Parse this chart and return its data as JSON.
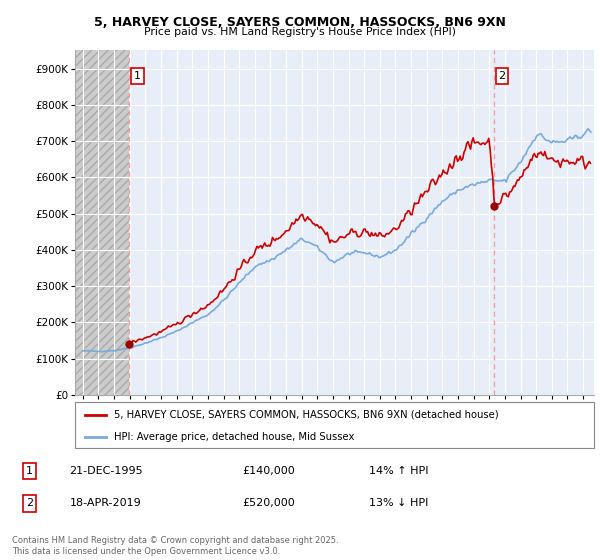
{
  "title1": "5, HARVEY CLOSE, SAYERS COMMON, HASSOCKS, BN6 9XN",
  "title2": "Price paid vs. HM Land Registry's House Price Index (HPI)",
  "bg_color": "#ffffff",
  "plot_bg_color": "#e8eef8",
  "hatch_bg_color": "#cccccc",
  "hatch_pattern": "////",
  "grid_color": "#ffffff",
  "line1_color": "#cc0000",
  "line2_color": "#7aaadd",
  "marker_color": "#990000",
  "vline_color": "#ff9999",
  "ylim": [
    0,
    950000
  ],
  "yticks": [
    0,
    100000,
    200000,
    300000,
    400000,
    500000,
    600000,
    700000,
    800000,
    900000
  ],
  "ytick_labels": [
    "£0",
    "£100K",
    "£200K",
    "£300K",
    "£400K",
    "£500K",
    "£600K",
    "£700K",
    "£800K",
    "£900K"
  ],
  "xlim_start": 1992.5,
  "xlim_end": 2025.7,
  "hatch_end": 1995.97,
  "sale1_x": 1995.97,
  "sale1_y": 140000,
  "sale1_label": "1",
  "sale1_date": "21-DEC-1995",
  "sale1_price": "£140,000",
  "sale1_hpi": "14% ↑ HPI",
  "sale2_x": 2019.29,
  "sale2_y": 520000,
  "sale2_label": "2",
  "sale2_date": "18-APR-2019",
  "sale2_price": "£520,000",
  "sale2_hpi": "13% ↓ HPI",
  "legend1_label": "5, HARVEY CLOSE, SAYERS COMMON, HASSOCKS, BN6 9XN (detached house)",
  "legend2_label": "HPI: Average price, detached house, Mid Sussex",
  "footnote": "Contains HM Land Registry data © Crown copyright and database right 2025.\nThis data is licensed under the Open Government Licence v3.0.",
  "xticks": [
    1993,
    1994,
    1995,
    1996,
    1997,
    1998,
    1999,
    2000,
    2001,
    2002,
    2003,
    2004,
    2005,
    2006,
    2007,
    2008,
    2009,
    2010,
    2011,
    2012,
    2013,
    2014,
    2015,
    2016,
    2017,
    2018,
    2019,
    2020,
    2021,
    2022,
    2023,
    2024,
    2025
  ]
}
